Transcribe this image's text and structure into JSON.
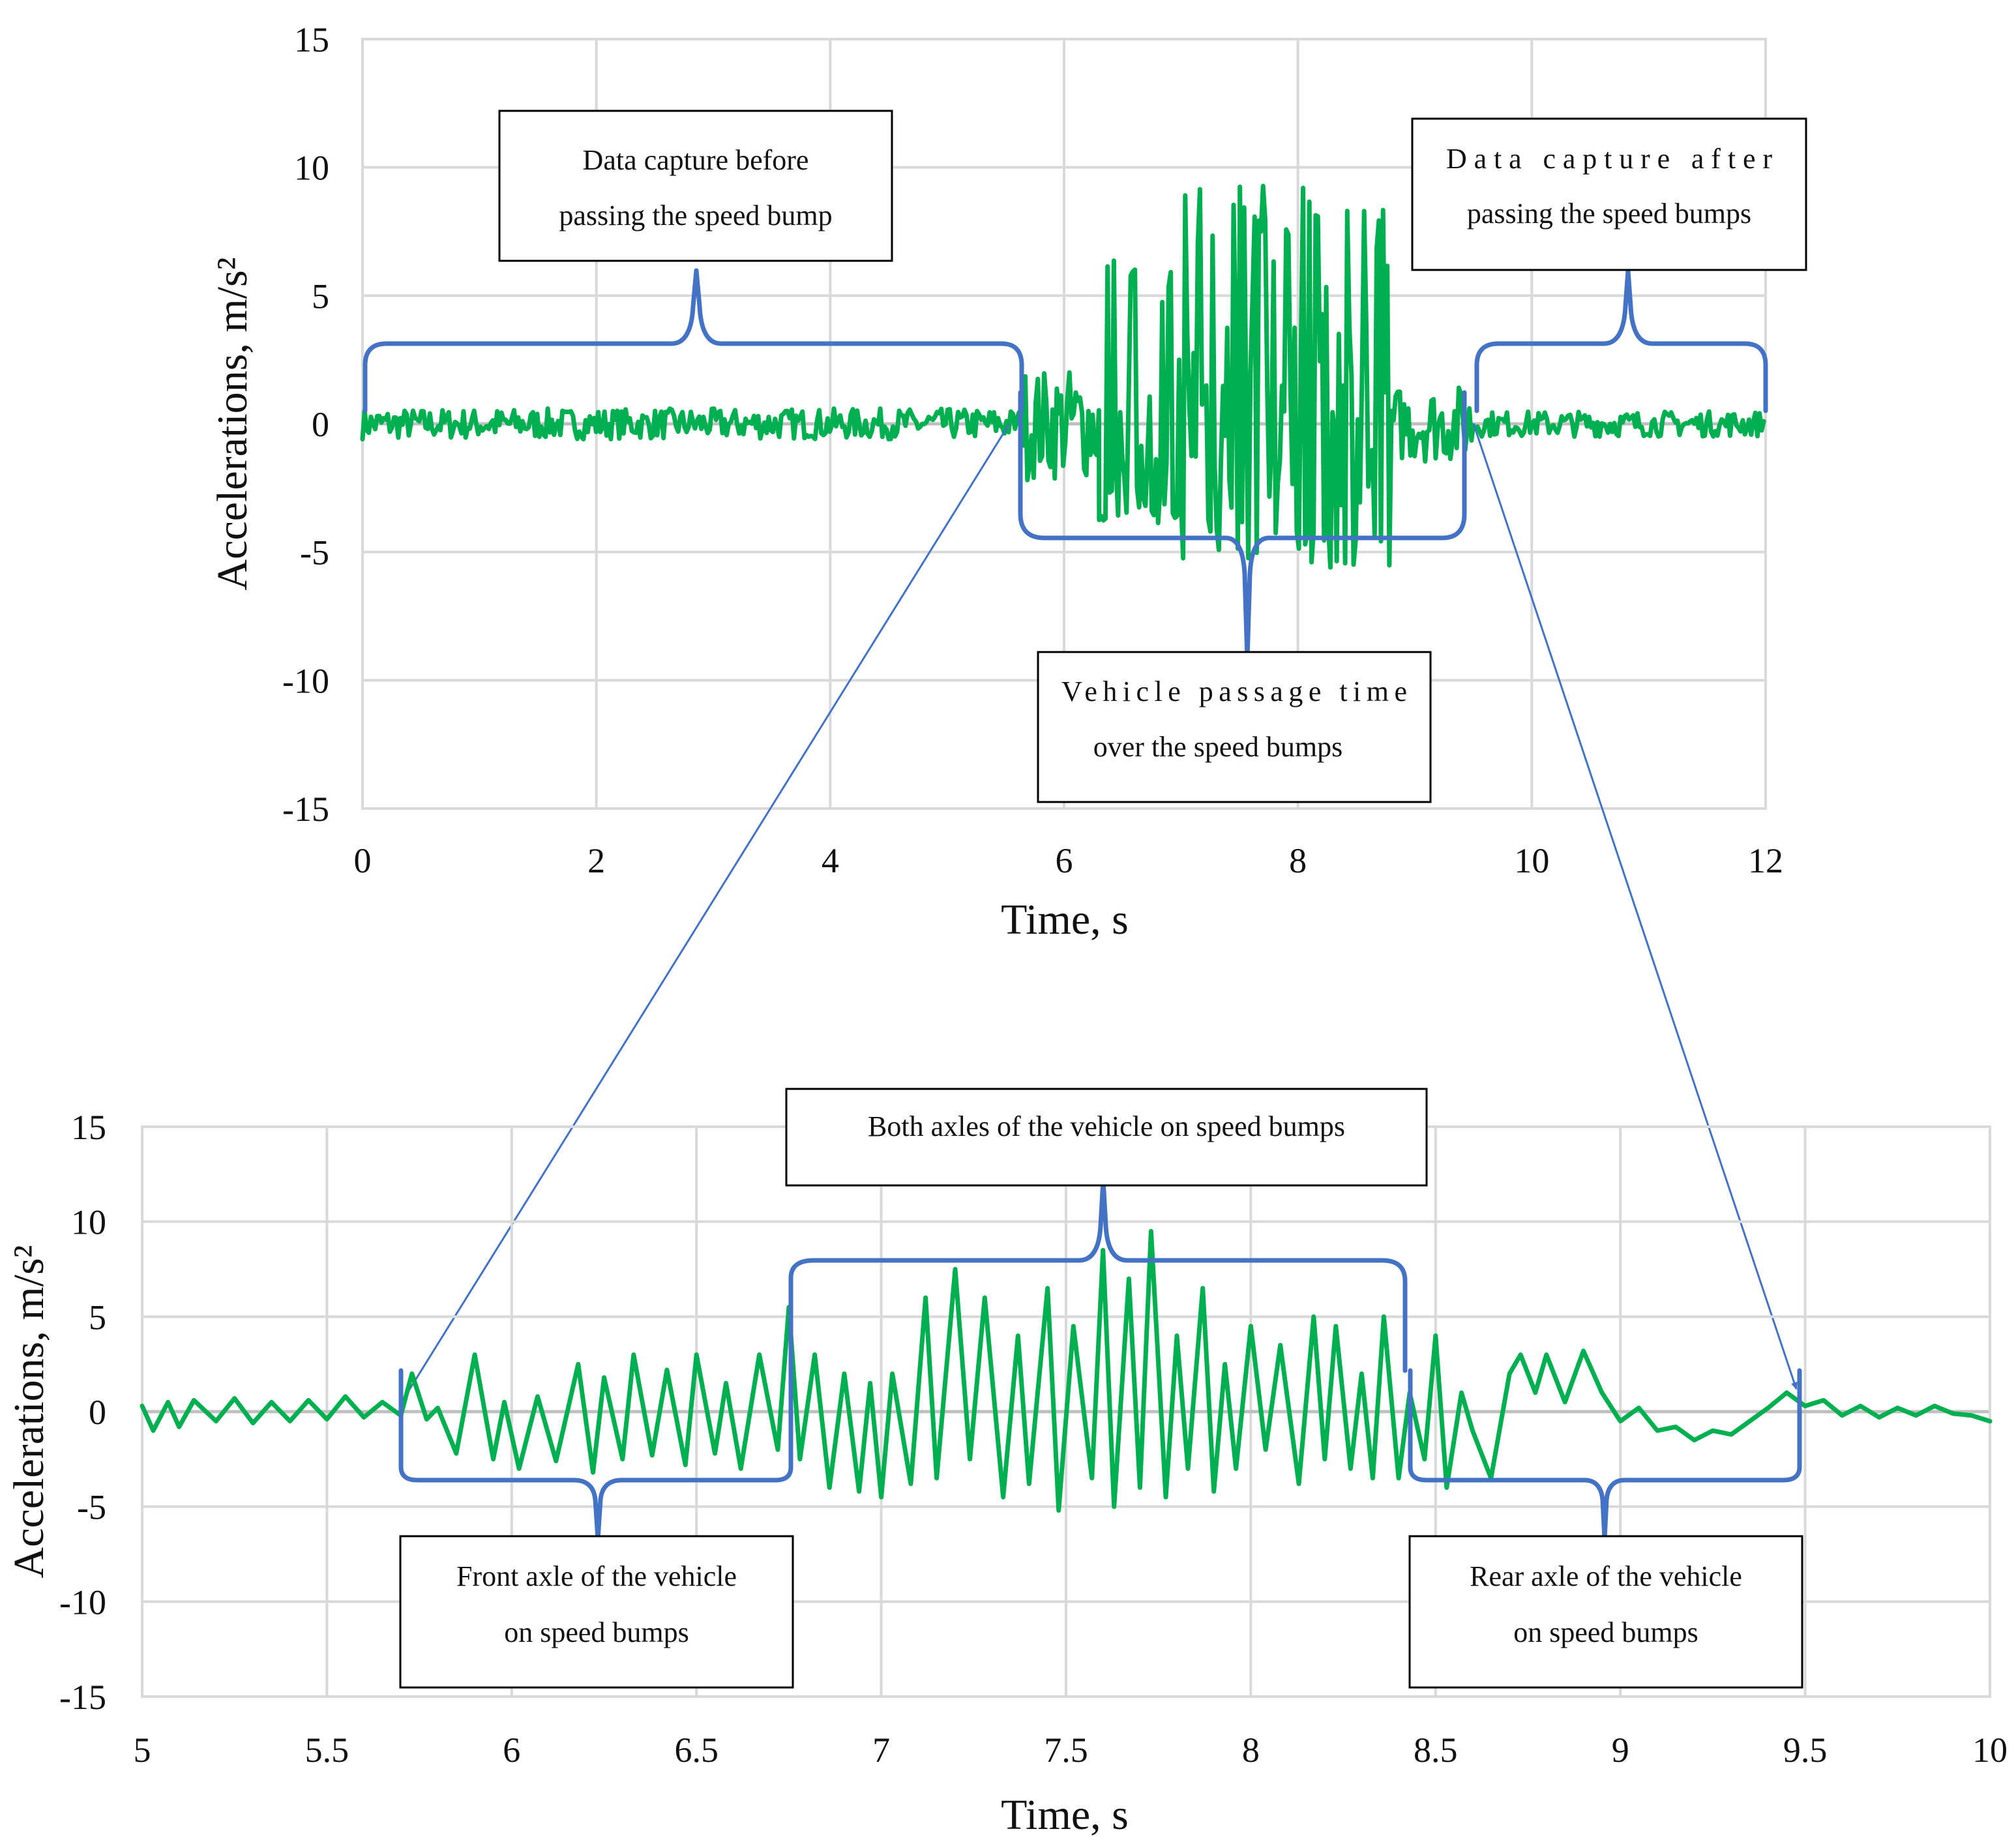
{
  "colors": {
    "series": "#00b050",
    "brace": "#4472c4",
    "grid": "#d9d9d9",
    "text": "#111111"
  },
  "chart_data": [
    {
      "type": "line",
      "name": "overview",
      "xlabel": "Time, s",
      "ylabel": "Accelerations, m/s²",
      "xlim": [
        0,
        12
      ],
      "ylim": [
        -15,
        15
      ],
      "xticks": [
        0,
        2,
        4,
        6,
        8,
        10,
        12
      ],
      "yticks": [
        15,
        10,
        5,
        0,
        -5,
        -10,
        -15
      ],
      "xtick_labels": [
        "0",
        "2",
        "4",
        "6",
        "8",
        "10",
        "12"
      ],
      "ytick_labels": [
        "15",
        "10",
        "5",
        "0",
        "-5",
        "-10",
        "-15"
      ],
      "grid": true,
      "series": [
        {
          "name": "Acceleration",
          "segments": [
            {
              "t_start": 0,
              "t_end": 5.65,
              "amplitude": 0.6
            },
            {
              "t_start": 5.65,
              "t_end": 6.3,
              "amplitude": 2.2
            },
            {
              "t_start": 6.3,
              "t_end": 7.0,
              "amplitude": 3.8
            },
            {
              "t_start": 7.0,
              "t_end": 8.8,
              "amplitude": 5.5
            },
            {
              "t_start": 8.8,
              "t_end": 9.5,
              "amplitude": 1.5
            },
            {
              "t_start": 9.5,
              "t_end": 12,
              "amplitude": 0.5
            }
          ]
        }
      ],
      "annotations": [
        {
          "text": "Data capture before passing the speed bump",
          "x_range": [
            0,
            5.6
          ]
        },
        {
          "text": "Vehicle passage time over the speed bumps",
          "x_range": [
            5.6,
            9.5
          ]
        },
        {
          "text": "Data capture after passing the speed bumps",
          "x_range": [
            9.5,
            12
          ]
        }
      ]
    },
    {
      "type": "line",
      "name": "zoom",
      "xlabel": "Time, s",
      "ylabel": "Accelerations, m/s²",
      "xlim": [
        5,
        10
      ],
      "ylim": [
        -15,
        15
      ],
      "xticks": [
        5,
        5.5,
        6,
        6.5,
        7,
        7.5,
        8,
        8.5,
        9,
        9.5,
        10
      ],
      "yticks": [
        15,
        10,
        5,
        0,
        -5,
        -10,
        -15
      ],
      "xtick_labels": [
        "5",
        "5.5",
        "6",
        "6.5",
        "7",
        "7.5",
        "8",
        "8.5",
        "9",
        "9.5",
        "10"
      ],
      "ytick_labels": [
        "15",
        "10",
        "5",
        "0",
        "-5",
        "-10",
        "-15"
      ],
      "grid": true,
      "series": [
        {
          "name": "Acceleration",
          "x": [
            5.0,
            5.03,
            5.07,
            5.1,
            5.14,
            5.2,
            5.25,
            5.3,
            5.35,
            5.4,
            5.45,
            5.5,
            5.55,
            5.6,
            5.65,
            5.7,
            5.73,
            5.77,
            5.8,
            5.85,
            5.9,
            5.95,
            5.98,
            6.02,
            6.07,
            6.12,
            6.18,
            6.22,
            6.25,
            6.3,
            6.33,
            6.38,
            6.42,
            6.47,
            6.5,
            6.55,
            6.58,
            6.62,
            6.67,
            6.72,
            6.75,
            6.78,
            6.82,
            6.86,
            6.9,
            6.94,
            6.97,
            7.0,
            7.03,
            7.08,
            7.12,
            7.15,
            7.2,
            7.24,
            7.28,
            7.33,
            7.37,
            7.4,
            7.45,
            7.48,
            7.52,
            7.57,
            7.6,
            7.63,
            7.67,
            7.7,
            7.73,
            7.77,
            7.8,
            7.83,
            7.87,
            7.9,
            7.93,
            7.96,
            8.0,
            8.04,
            8.08,
            8.13,
            8.17,
            8.2,
            8.23,
            8.27,
            8.3,
            8.33,
            8.36,
            8.4,
            8.43,
            8.47,
            8.5,
            8.53,
            8.57,
            8.6,
            8.65,
            8.7,
            8.73,
            8.77,
            8.8,
            8.85,
            8.9,
            8.95,
            9.0,
            9.05,
            9.1,
            9.15,
            9.2,
            9.25,
            9.3,
            9.35,
            9.4,
            9.45,
            9.5,
            9.55,
            9.6,
            9.65,
            9.7,
            9.75,
            9.8,
            9.85,
            9.9,
            9.95,
            10.0
          ],
          "y": [
            0.3,
            -1.0,
            0.5,
            -0.8,
            0.6,
            -0.5,
            0.7,
            -0.6,
            0.5,
            -0.5,
            0.6,
            -0.4,
            0.8,
            -0.3,
            0.5,
            -0.2,
            2.0,
            -0.4,
            0.2,
            -2.2,
            3.0,
            -2.5,
            0.5,
            -3.0,
            0.8,
            -2.6,
            2.5,
            -3.2,
            1.8,
            -2.5,
            3.0,
            -2.3,
            2.2,
            -2.8,
            3.0,
            -2.2,
            1.5,
            -3.0,
            3.0,
            -2.0,
            5.5,
            -2.5,
            3.0,
            -4.0,
            2.0,
            -4.2,
            1.5,
            -4.5,
            2.0,
            -3.8,
            6.0,
            -3.5,
            7.5,
            -2.5,
            6.0,
            -4.5,
            4.0,
            -3.8,
            6.5,
            -5.2,
            4.5,
            -3.5,
            8.5,
            -5.0,
            7.0,
            -4.0,
            9.5,
            -4.5,
            4.0,
            -3.0,
            6.5,
            -4.2,
            2.5,
            -3.0,
            4.5,
            -2.0,
            3.5,
            -3.8,
            5.0,
            -2.5,
            4.5,
            -3.0,
            2.0,
            -3.5,
            5.0,
            -3.5,
            1.0,
            -2.5,
            4.0,
            -4.0,
            1.0,
            -1.0,
            -3.5,
            2.0,
            3.0,
            1.0,
            3.0,
            0.5,
            3.2,
            1.0,
            -0.5,
            0.2,
            -1.0,
            -0.8,
            -1.5,
            -1.0,
            -1.2,
            -0.5,
            0.2,
            1.0,
            0.3,
            0.6,
            -0.2,
            0.3,
            -0.3,
            0.2,
            -0.2,
            0.3,
            -0.1,
            -0.2,
            -0.5
          ]
        }
      ],
      "annotations": [
        {
          "text": "Both axles of the vehicle on speed bumps",
          "x_range": [
            6.75,
            8.45
          ]
        },
        {
          "text": "Front axle of the vehicle on speed bumps",
          "x_range": [
            5.7,
            6.75
          ]
        },
        {
          "text": "Rear axle of the vehicle on speed bumps",
          "x_range": [
            8.45,
            9.5
          ]
        }
      ]
    }
  ],
  "annotations": {
    "top_before": [
      "Data capture before",
      "passing the speed bump"
    ],
    "top_passage": [
      "Vehicle passage time",
      "over the speed bumps"
    ],
    "top_after": [
      "Data capture after",
      "passing the speed bumps"
    ],
    "bottom_both": "Both axles of the vehicle on speed bumps",
    "bottom_front": [
      "Front axle of the vehicle",
      "on speed bumps"
    ],
    "bottom_rear": [
      "Rear axle of the vehicle",
      "on speed bumps"
    ]
  }
}
